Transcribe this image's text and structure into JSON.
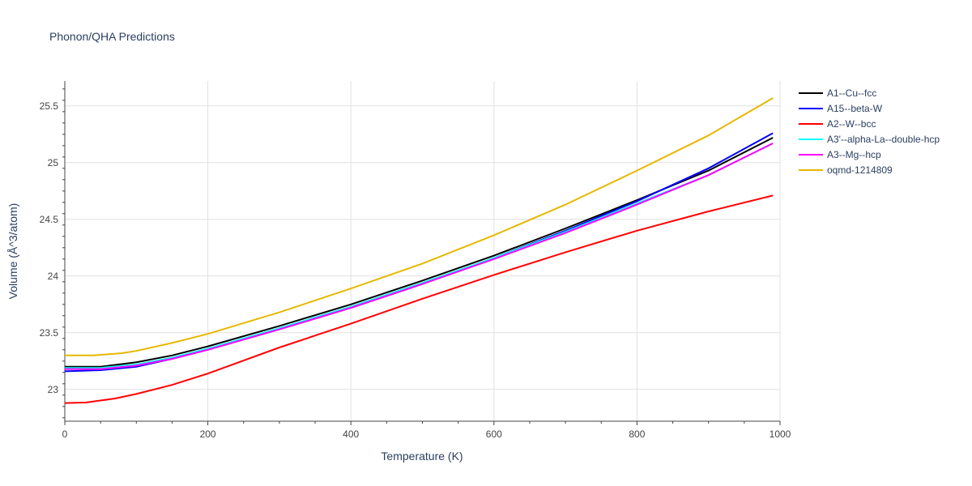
{
  "chart_data": {
    "type": "line",
    "title": "Phonon/QHA Predictions",
    "xlabel": "Temperature (K)",
    "ylabel": "Volume (Å^3/atom)",
    "xlim": [
      0,
      1000
    ],
    "ylim": [
      22.72,
      25.72
    ],
    "xticks": [
      0,
      200,
      400,
      600,
      800,
      1000
    ],
    "xtick_labels": [
      "0",
      "200",
      "400",
      "600",
      "800",
      "1000"
    ],
    "yticks": [
      23,
      23.5,
      24,
      24.5,
      25,
      25.5
    ],
    "ytick_labels": [
      "23",
      "23.5",
      "24",
      "24.5",
      "25",
      "25.5"
    ],
    "grid": true,
    "legend_position": "right",
    "series": [
      {
        "name": "A1--Cu--fcc",
        "color": "#000000",
        "x": [
          0,
          50,
          100,
          150,
          200,
          300,
          400,
          500,
          600,
          700,
          800,
          900,
          990
        ],
        "y": [
          23.2,
          23.2,
          23.24,
          23.3,
          23.38,
          23.56,
          23.75,
          23.96,
          24.18,
          24.42,
          24.67,
          24.93,
          25.22
        ]
      },
      {
        "name": "A15--beta-W",
        "color": "#0000ff",
        "x": [
          0,
          50,
          100,
          150,
          200,
          300,
          400,
          500,
          600,
          700,
          800,
          900,
          990
        ],
        "y": [
          23.16,
          23.17,
          23.2,
          23.27,
          23.35,
          23.53,
          23.72,
          23.93,
          24.16,
          24.4,
          24.66,
          24.95,
          25.26
        ]
      },
      {
        "name": "A2--W--bcc",
        "color": "#ff0000",
        "x": [
          0,
          30,
          70,
          100,
          150,
          200,
          300,
          400,
          500,
          600,
          700,
          800,
          900,
          990
        ],
        "y": [
          22.88,
          22.885,
          22.92,
          22.96,
          23.04,
          23.14,
          23.37,
          23.58,
          23.8,
          24.01,
          24.21,
          24.4,
          24.57,
          24.71
        ]
      },
      {
        "name": "A3'--alpha-La--double-hcp",
        "color": "#00ffff",
        "x": [
          0,
          50,
          100,
          150,
          200,
          300,
          400,
          500,
          600,
          700,
          800,
          900,
          990
        ],
        "y": [
          23.19,
          23.19,
          23.22,
          23.28,
          23.36,
          23.54,
          23.73,
          23.94,
          24.16,
          24.39,
          24.64,
          24.89,
          25.17
        ]
      },
      {
        "name": "A3--Mg--hcp",
        "color": "#ff00ff",
        "x": [
          0,
          50,
          100,
          150,
          200,
          300,
          400,
          500,
          600,
          700,
          800,
          900,
          990
        ],
        "y": [
          23.18,
          23.18,
          23.21,
          23.27,
          23.35,
          23.53,
          23.72,
          23.93,
          24.15,
          24.38,
          24.63,
          24.89,
          25.17
        ]
      },
      {
        "name": "oqmd-1214809",
        "color": "#e6b800",
        "x": [
          0,
          40,
          80,
          100,
          150,
          200,
          300,
          400,
          500,
          600,
          700,
          800,
          900,
          990
        ],
        "y": [
          23.3,
          23.3,
          23.32,
          23.34,
          23.41,
          23.49,
          23.68,
          23.89,
          24.11,
          24.36,
          24.63,
          24.93,
          25.24,
          25.57
        ]
      }
    ]
  }
}
